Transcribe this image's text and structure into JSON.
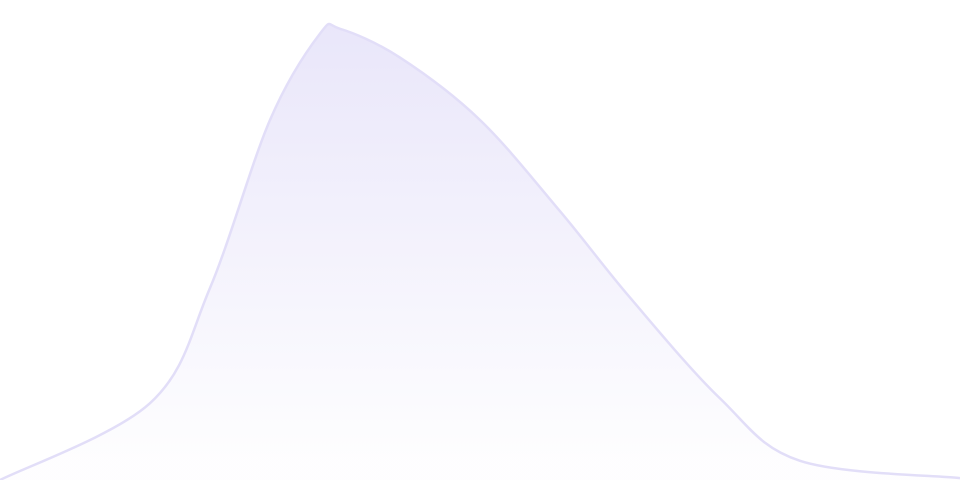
{
  "chart_data": {
    "type": "area",
    "x": [
      0,
      150,
      210,
      270,
      320,
      340,
      400,
      480,
      560,
      630,
      720,
      800,
      960
    ],
    "values": [
      0,
      16,
      40,
      75,
      93,
      94,
      88,
      75,
      56,
      38,
      17,
      4,
      0.4
    ],
    "color": "#e2def8",
    "xlim": [
      0,
      960
    ],
    "ylim": [
      0,
      100
    ]
  }
}
